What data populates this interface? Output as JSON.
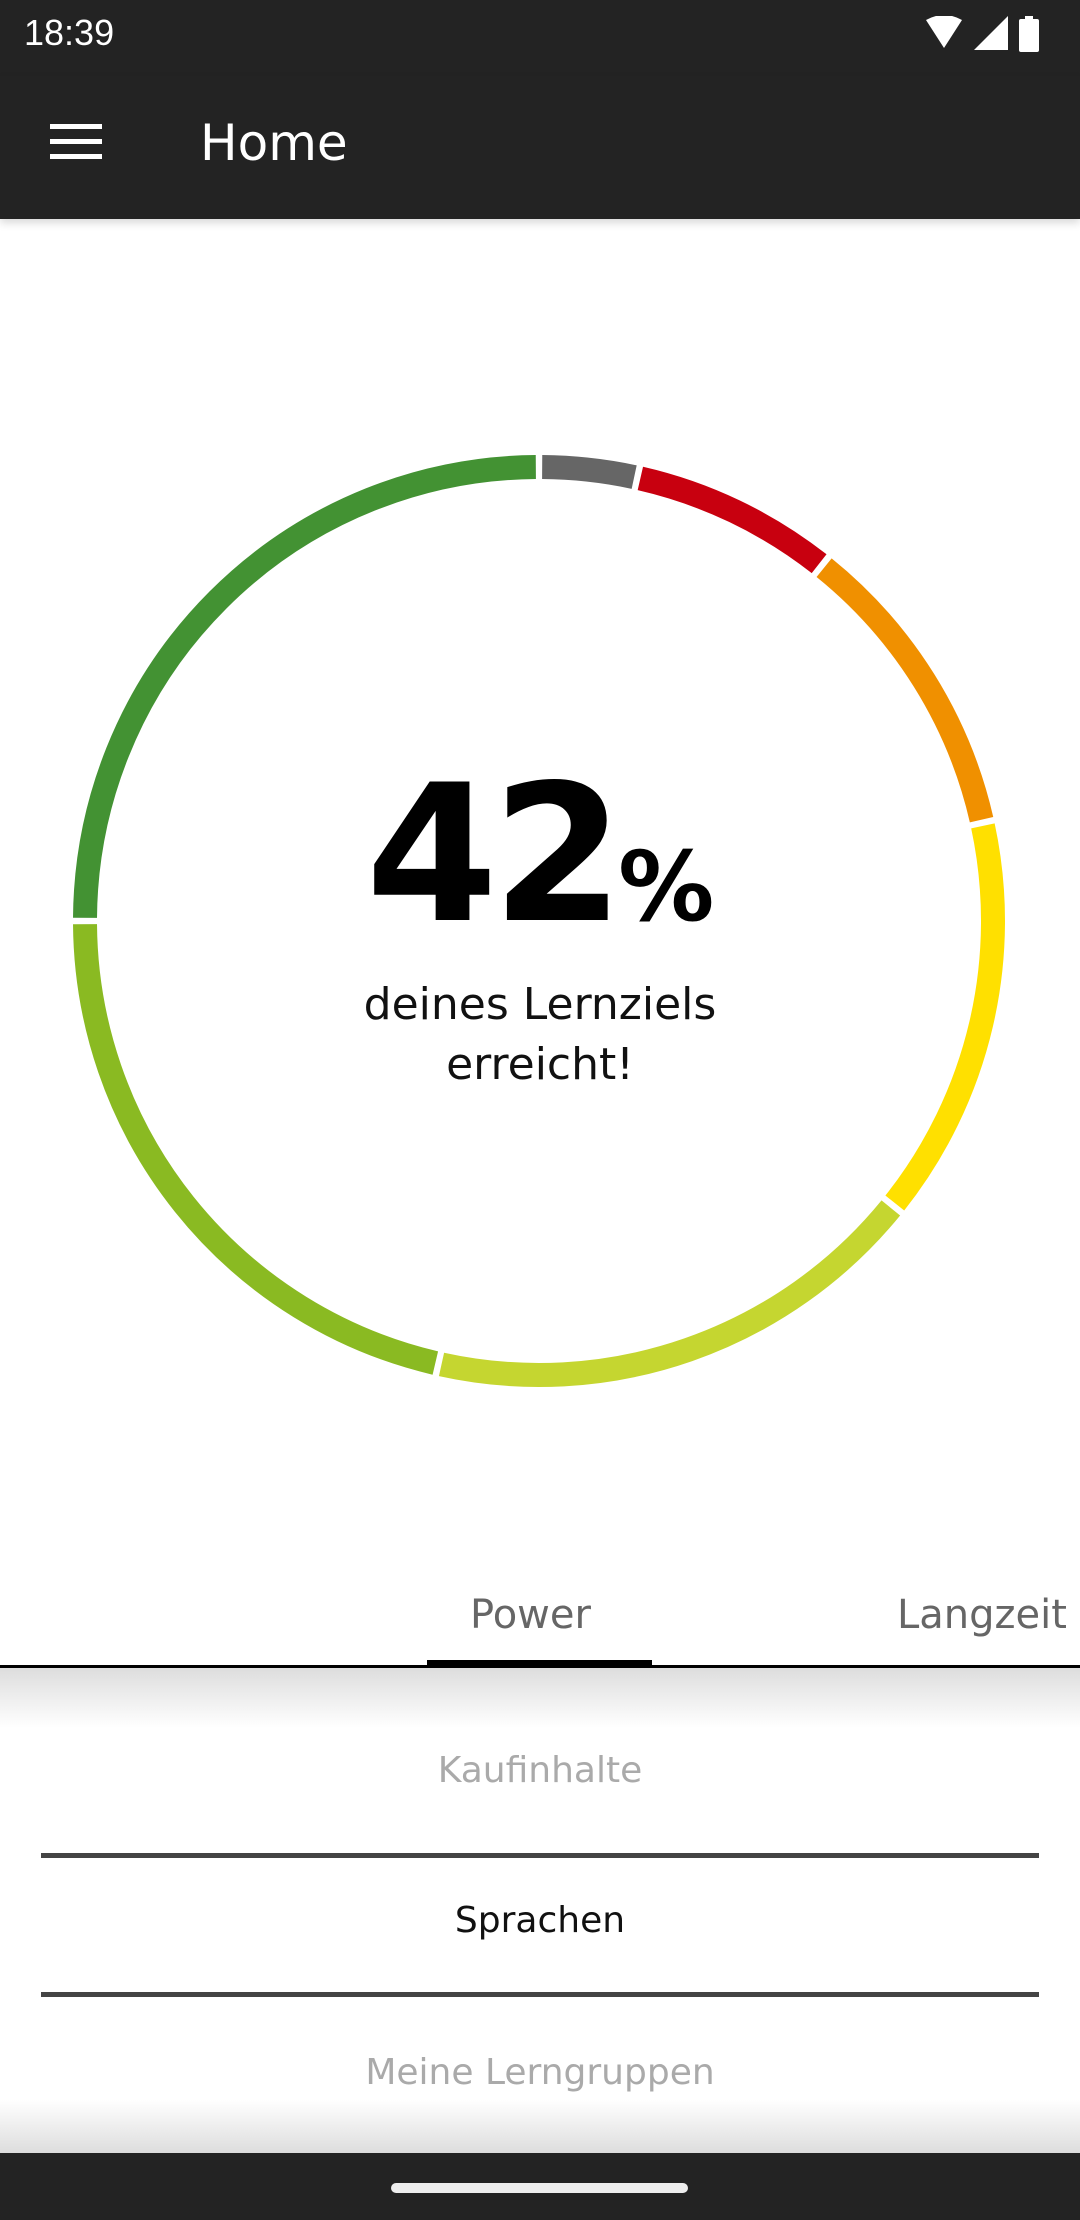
{
  "status_bar": {
    "time": "18:39",
    "icons": [
      "wifi-icon",
      "signal-icon",
      "battery-icon"
    ]
  },
  "app_bar": {
    "title": "Home",
    "menu_icon": "hamburger-menu-icon"
  },
  "progress": {
    "percent_value": "42",
    "percent_sign": "%",
    "caption_line1": "deines Lernziels",
    "caption_line2": "erreicht!"
  },
  "chart_data": {
    "type": "pie",
    "style": "donut",
    "unit": "degrees of ring",
    "segments": [
      {
        "value": 12.5,
        "color": "#666666"
      },
      {
        "value": 26,
        "color": "#c8000f"
      },
      {
        "value": 39,
        "color": "#f09000"
      },
      {
        "value": 51.3,
        "color": "#ffe000"
      },
      {
        "value": 64,
        "color": "#c5d630"
      },
      {
        "value": 77.2,
        "color": "#8aba22"
      },
      {
        "value": 90,
        "color": "#439233"
      }
    ]
  },
  "tabs": [
    {
      "label": "Power",
      "active": true
    },
    {
      "label": "Langzeit",
      "active": false
    }
  ],
  "picker": {
    "items": [
      {
        "label": "Kaufinhalte",
        "selected": false
      },
      {
        "label": "Sprachen",
        "selected": true
      },
      {
        "label": "Meine Lerngruppen",
        "selected": false
      }
    ]
  }
}
